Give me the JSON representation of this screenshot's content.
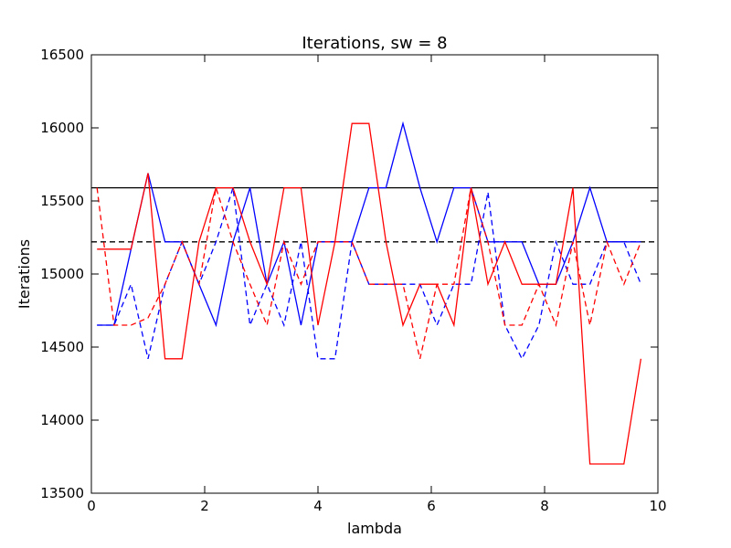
{
  "chart_data": {
    "type": "line",
    "title": "Iterations, sw = 8",
    "xlabel": "lambda",
    "ylabel": "Iterations",
    "xlim": [
      0,
      10
    ],
    "ylim": [
      13500,
      16500
    ],
    "xticks": [
      0,
      2,
      4,
      6,
      8,
      10
    ],
    "yticks": [
      13500,
      14000,
      14500,
      15000,
      15500,
      16000,
      16500
    ],
    "grid": false,
    "legend": false,
    "hlines": [
      {
        "y": 15590,
        "color": "#000000",
        "style": "solid"
      },
      {
        "y": 15220,
        "color": "#000000",
        "style": "dashed"
      }
    ],
    "series": [
      {
        "color": "#0000ff",
        "style": "solid",
        "x": [
          0.1,
          0.4,
          0.7,
          1.0,
          1.3,
          1.6,
          1.9,
          2.2,
          2.5,
          2.8,
          3.1,
          3.4,
          3.7,
          4.0,
          4.3,
          4.6,
          4.9,
          5.2,
          5.5,
          5.8,
          6.1,
          6.4,
          6.7,
          7.0,
          7.3,
          7.6,
          7.9,
          8.2,
          8.5,
          8.8,
          9.1,
          9.4,
          9.7
        ],
        "y": [
          14650,
          14650,
          15170,
          15690,
          15220,
          15220,
          14930,
          14650,
          15220,
          15590,
          14930,
          15220,
          14650,
          15220,
          15220,
          15220,
          15590,
          15590,
          16030,
          15590,
          15220,
          15590,
          15590,
          15220,
          15220,
          15220,
          14930,
          14930,
          15220,
          15590,
          15220,
          15220,
          15220
        ]
      },
      {
        "color": "#0000ff",
        "style": "dashed",
        "x": [
          0.1,
          0.4,
          0.7,
          1.0,
          1.3,
          1.6,
          1.9,
          2.2,
          2.5,
          2.8,
          3.1,
          3.4,
          3.7,
          4.0,
          4.3,
          4.6,
          4.9,
          5.2,
          5.5,
          5.8,
          6.1,
          6.4,
          6.7,
          7.0,
          7.3,
          7.6,
          7.9,
          8.2,
          8.5,
          8.8,
          9.1,
          9.4,
          9.7
        ],
        "y": [
          14650,
          14650,
          14930,
          14420,
          14930,
          15220,
          14930,
          15220,
          15590,
          14650,
          14930,
          14650,
          15220,
          14420,
          14420,
          15220,
          14930,
          14930,
          14930,
          14930,
          14650,
          14930,
          14930,
          15560,
          14650,
          14420,
          14650,
          15220,
          14930,
          14930,
          15220,
          15220,
          14930
        ]
      },
      {
        "color": "#ff0000",
        "style": "solid",
        "x": [
          0.1,
          0.4,
          0.7,
          1.0,
          1.3,
          1.6,
          1.9,
          2.2,
          2.5,
          2.8,
          3.1,
          3.4,
          3.7,
          4.0,
          4.3,
          4.6,
          4.9,
          5.2,
          5.5,
          5.8,
          6.1,
          6.4,
          6.7,
          7.0,
          7.3,
          7.6,
          7.9,
          8.2,
          8.5,
          8.8,
          9.1,
          9.4,
          9.7
        ],
        "y": [
          15170,
          15170,
          15170,
          15690,
          14420,
          14420,
          15220,
          15590,
          15590,
          15220,
          14930,
          15590,
          15590,
          14650,
          15220,
          16030,
          16030,
          15220,
          14650,
          14930,
          14930,
          14650,
          15590,
          14930,
          15220,
          14930,
          14930,
          14930,
          15590,
          13700,
          13700,
          13700,
          14420
        ]
      },
      {
        "color": "#ff0000",
        "style": "dashed",
        "x": [
          0.1,
          0.4,
          0.7,
          1.0,
          1.3,
          1.6,
          1.9,
          2.2,
          2.5,
          2.8,
          3.1,
          3.4,
          3.7,
          4.0,
          4.3,
          4.6,
          4.9,
          5.2,
          5.5,
          5.8,
          6.1,
          6.4,
          6.7,
          7.0,
          7.3,
          7.6,
          7.9,
          8.2,
          8.5,
          8.8,
          9.1,
          9.4,
          9.7
        ],
        "y": [
          15590,
          14650,
          14650,
          14700,
          14930,
          15220,
          14930,
          15590,
          15220,
          14930,
          14650,
          15220,
          14930,
          15220,
          15220,
          15220,
          14930,
          14930,
          14930,
          14420,
          14930,
          14930,
          15590,
          15220,
          14650,
          14650,
          14930,
          14650,
          15220,
          14650,
          15220,
          14930,
          15220
        ]
      }
    ]
  }
}
